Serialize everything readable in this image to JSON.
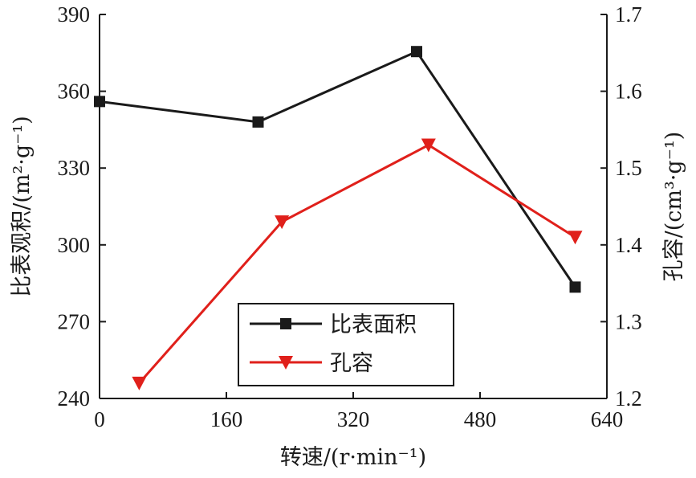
{
  "chart_data": {
    "type": "line",
    "xlabel": "转速/(r·min⁻¹)",
    "ylabel": "比表观积/(m²·g⁻¹)",
    "y2label": "孔容/(cm³·g⁻¹)",
    "xlim": [
      0,
      640
    ],
    "ylim": [
      240,
      390
    ],
    "y2lim": [
      1.2,
      1.7
    ],
    "xticks": [
      0,
      160,
      320,
      480,
      640
    ],
    "yticks": [
      240,
      270,
      300,
      330,
      360,
      390
    ],
    "y2ticks": [
      1.2,
      1.3,
      1.4,
      1.5,
      1.6,
      1.7
    ],
    "x_tick_labels": [
      "0",
      "160",
      "320",
      "480",
      "640"
    ],
    "y_tick_labels": [
      "240",
      "270",
      "300",
      "330",
      "360",
      "390"
    ],
    "y2_tick_labels": [
      "1.2",
      "1.3",
      "1.4",
      "1.5",
      "1.6",
      "1.7"
    ],
    "grid": false,
    "legend_position": "lower-center",
    "series": [
      {
        "name": "比表面积",
        "axis": "left",
        "color": "#1a1a1a",
        "marker": "square",
        "x": [
          0,
          200,
          400,
          600
        ],
        "y": [
          356,
          348,
          375.5,
          283.5
        ]
      },
      {
        "name": "孔容",
        "axis": "right",
        "color": "#e0201b",
        "marker": "triangle-down",
        "x": [
          50,
          230,
          415,
          600
        ],
        "y": [
          1.22,
          1.43,
          1.53,
          1.41
        ]
      }
    ]
  }
}
